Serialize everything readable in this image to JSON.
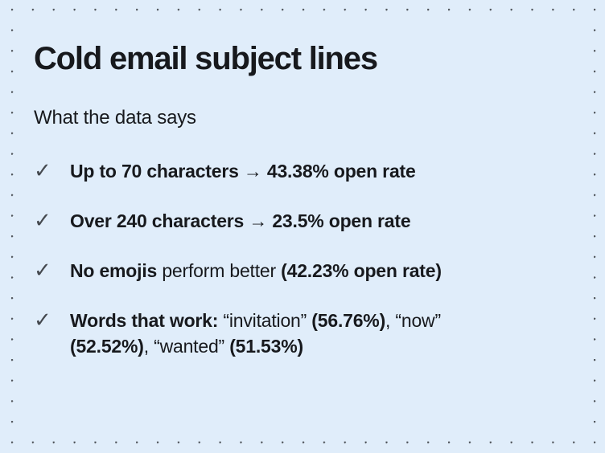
{
  "theme": {
    "background": "#e0edfa",
    "dot_color": "#4f545a",
    "text_color": "#17191d",
    "check_color": "#45494f"
  },
  "card": {
    "title": "Cold email subject lines",
    "subtitle": "What the data says",
    "check_icon": "✓",
    "items": [
      {
        "lines": [
          [
            {
              "text": "Up to 70 characters → 43.38% open rate",
              "bold": true
            }
          ]
        ]
      },
      {
        "lines": [
          [
            {
              "text": "Over 240 characters → 23.5% open rate",
              "bold": true
            }
          ]
        ]
      },
      {
        "lines": [
          [
            {
              "text": "No emojis",
              "bold": true
            },
            {
              "text": " perform better ",
              "bold": false
            },
            {
              "text": "(42.23% open rate)",
              "bold": true
            }
          ]
        ]
      },
      {
        "lines": [
          [
            {
              "text": "Words that work:",
              "bold": true
            },
            {
              "text": " “invitation” ",
              "bold": false
            },
            {
              "text": "(56.76%)",
              "bold": true
            },
            {
              "text": ", “now”",
              "bold": false
            }
          ],
          [
            {
              "text": "(52.52%)",
              "bold": true
            },
            {
              "text": ", “wanted” ",
              "bold": false
            },
            {
              "text": "(51.53%)",
              "bold": true
            }
          ]
        ]
      }
    ]
  }
}
